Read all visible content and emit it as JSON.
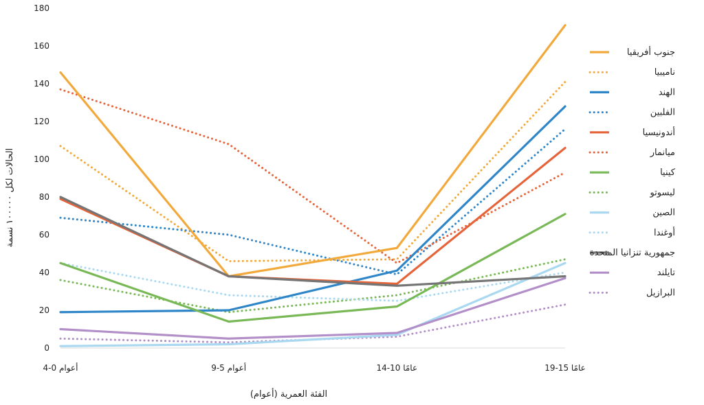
{
  "chart_data": {
    "type": "line",
    "title": "",
    "xlabel": "الفئة العمرية (أعوام)",
    "ylabel": "الحالات لكل ١٠٠٠٠٠ نسمة",
    "categories": [
      "4-0 أعوام",
      "9-5 أعوام",
      "14-10 عامًا",
      "19-15 عامًا"
    ],
    "ylim": [
      0,
      180
    ],
    "yticks": [
      0,
      20,
      40,
      60,
      80,
      100,
      120,
      140,
      160,
      180
    ],
    "grid": false,
    "legend_position": "right",
    "series": [
      {
        "name": "جنوب أفريقيا",
        "values": [
          146,
          38,
          53,
          171
        ],
        "color": "#F2A93B",
        "style": "solid"
      },
      {
        "name": "ناميبيا",
        "values": [
          107,
          46,
          47,
          141
        ],
        "color": "#F2A93B",
        "style": "dotted"
      },
      {
        "name": "الهند",
        "values": [
          19,
          20,
          41,
          128
        ],
        "color": "#2E86C8",
        "style": "solid"
      },
      {
        "name": "الفلبين",
        "values": [
          69,
          60,
          39,
          116
        ],
        "color": "#2E86C8",
        "style": "dotted"
      },
      {
        "name": "أندونيسيا",
        "values": [
          79,
          38,
          34,
          106
        ],
        "color": "#E5643A",
        "style": "solid"
      },
      {
        "name": "ميانمار",
        "values": [
          137,
          108,
          45,
          93
        ],
        "color": "#E5643A",
        "style": "dotted"
      },
      {
        "name": "كينيا",
        "values": [
          45,
          14,
          22,
          71
        ],
        "color": "#79B856",
        "style": "solid"
      },
      {
        "name": "ليسوتو",
        "values": [
          36,
          19,
          28,
          47
        ],
        "color": "#79B856",
        "style": "dotted"
      },
      {
        "name": "الصين",
        "values": [
          1,
          2,
          7,
          45
        ],
        "color": "#A9D8F0",
        "style": "solid"
      },
      {
        "name": "أوغندا",
        "values": [
          45,
          28,
          25,
          40
        ],
        "color": "#A9D8F0",
        "style": "dotted"
      },
      {
        "name": "جمهورية تنزانيا المتحدة",
        "values": [
          80,
          38,
          33,
          38
        ],
        "color": "#757575",
        "style": "solid"
      },
      {
        "name": "تايلند",
        "values": [
          10,
          5,
          8,
          37
        ],
        "color": "#B28FC8",
        "style": "solid"
      },
      {
        "name": "البرازيل",
        "values": [
          5,
          3,
          6,
          23
        ],
        "color": "#B28FC8",
        "style": "dotted"
      }
    ]
  }
}
